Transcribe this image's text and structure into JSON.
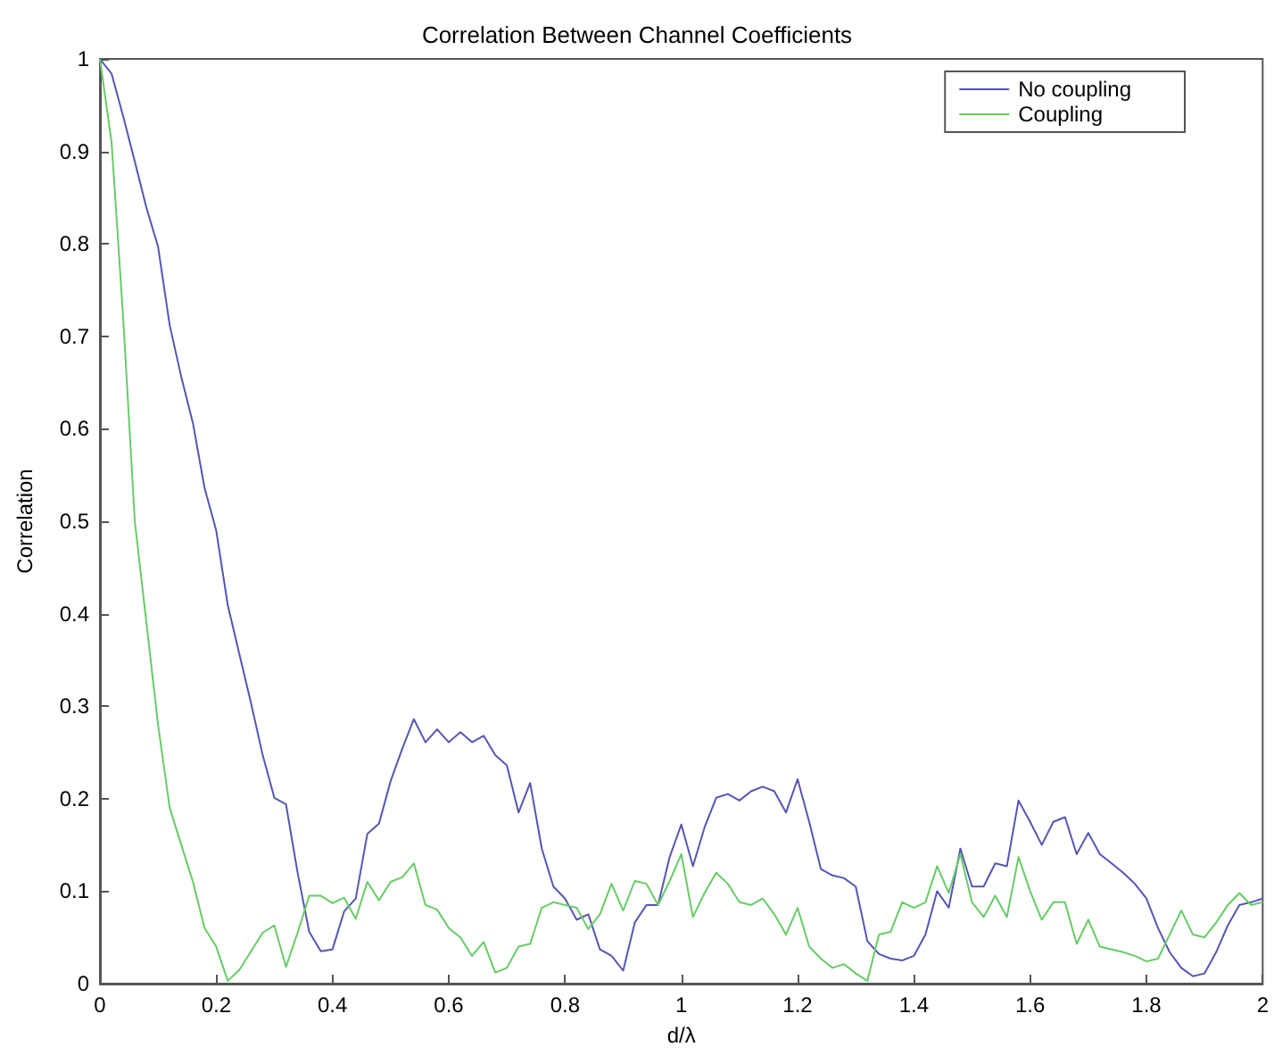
{
  "chart_data": {
    "type": "line",
    "title": "Correlation Between Channel Coefficients",
    "xlabel": "d/λ",
    "ylabel": "Correlation",
    "x": [
      0,
      0.02,
      0.04,
      0.06,
      0.08,
      0.1,
      0.12,
      0.14,
      0.16,
      0.18,
      0.2,
      0.22,
      0.24,
      0.26,
      0.28,
      0.3,
      0.32,
      0.34,
      0.36,
      0.38,
      0.4,
      0.42,
      0.44,
      0.46,
      0.48,
      0.5,
      0.52,
      0.54,
      0.56,
      0.58,
      0.6,
      0.62,
      0.64,
      0.66,
      0.68,
      0.7,
      0.72,
      0.74,
      0.76,
      0.78,
      0.8,
      0.82,
      0.84,
      0.86,
      0.88,
      0.9,
      0.92,
      0.94,
      0.96,
      0.98,
      1,
      1.02,
      1.04,
      1.06,
      1.08,
      1.1,
      1.12,
      1.14,
      1.16,
      1.18,
      1.2,
      1.22,
      1.24,
      1.26,
      1.28,
      1.3,
      1.32,
      1.34,
      1.36,
      1.38,
      1.4,
      1.42,
      1.44,
      1.46,
      1.48,
      1.5,
      1.52,
      1.54,
      1.56,
      1.58,
      1.6,
      1.62,
      1.64,
      1.66,
      1.68,
      1.7,
      1.72,
      1.74,
      1.76,
      1.78,
      1.8,
      1.82,
      1.84,
      1.86,
      1.88,
      1.9,
      1.92,
      1.94,
      1.96,
      1.98,
      2
    ],
    "series": [
      {
        "name": "No coupling",
        "color": "#5555b5",
        "values": [
          1,
          0.984,
          0.938,
          0.889,
          0.839,
          0.797,
          0.712,
          0.656,
          0.606,
          0.536,
          0.49,
          0.409,
          0.356,
          0.303,
          0.247,
          0.201,
          0.194,
          0.12,
          0.056,
          0.035,
          0.037,
          0.078,
          0.092,
          0.162,
          0.173,
          0.219,
          0.254,
          0.286,
          0.261,
          0.275,
          0.261,
          0.272,
          0.261,
          0.268,
          0.247,
          0.236,
          0.185,
          0.217,
          0.146,
          0.105,
          0.092,
          0.069,
          0.075,
          0.037,
          0.03,
          0.014,
          0.066,
          0.085,
          0.085,
          0.137,
          0.172,
          0.127,
          0.169,
          0.201,
          0.205,
          0.198,
          0.208,
          0.213,
          0.208,
          0.185,
          0.221,
          0.175,
          0.124,
          0.117,
          0.114,
          0.105,
          0.046,
          0.032,
          0.027,
          0.025,
          0.03,
          0.053,
          0.1,
          0.082,
          0.146,
          0.105,
          0.105,
          0.13,
          0.127,
          0.198,
          0.175,
          0.15,
          0.175,
          0.18,
          0.14,
          0.163,
          0.14,
          0.13,
          0.12,
          0.108,
          0.092,
          0.06,
          0.034,
          0.017,
          0.008,
          0.011,
          0.034,
          0.063,
          0.085,
          0.088,
          0.092
        ]
      },
      {
        "name": "Coupling",
        "color": "#66cc66",
        "values": [
          1,
          0.91,
          0.72,
          0.5,
          0.39,
          0.28,
          0.19,
          0.15,
          0.11,
          0.06,
          0.04,
          0.003,
          0.015,
          0.035,
          0.055,
          0.063,
          0.018,
          0.055,
          0.095,
          0.095,
          0.087,
          0.093,
          0.07,
          0.11,
          0.09,
          0.11,
          0.115,
          0.13,
          0.085,
          0.08,
          0.06,
          0.05,
          0.03,
          0.045,
          0.012,
          0.017,
          0.04,
          0.043,
          0.082,
          0.088,
          0.085,
          0.082,
          0.059,
          0.075,
          0.108,
          0.079,
          0.111,
          0.108,
          0.085,
          0.111,
          0.14,
          0.072,
          0.098,
          0.12,
          0.108,
          0.088,
          0.085,
          0.092,
          0.075,
          0.053,
          0.082,
          0.04,
          0.027,
          0.017,
          0.021,
          0.011,
          0.003,
          0.053,
          0.056,
          0.088,
          0.082,
          0.088,
          0.127,
          0.098,
          0.14,
          0.088,
          0.072,
          0.095,
          0.072,
          0.137,
          0.1,
          0.069,
          0.088,
          0.088,
          0.043,
          0.069,
          0.04,
          0.037,
          0.034,
          0.03,
          0.024,
          0.027,
          0.053,
          0.079,
          0.053,
          0.05,
          0.066,
          0.085,
          0.098,
          0.085,
          0.088
        ]
      }
    ],
    "xlim": [
      0,
      2
    ],
    "xticks": [
      0,
      0.2,
      0.4,
      0.6,
      0.8,
      1,
      1.2,
      1.4,
      1.6,
      1.8,
      2
    ],
    "ylim": [
      0,
      1
    ],
    "yticks": [
      0,
      0.1,
      0.2,
      0.3,
      0.4,
      0.5,
      0.6,
      0.7,
      0.8,
      0.9,
      1
    ],
    "grid": false,
    "legend": "top right",
    "marker": "none",
    "line_style": "solid"
  }
}
